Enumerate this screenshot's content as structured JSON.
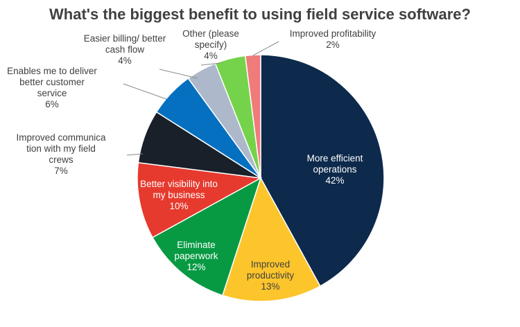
{
  "chart_data": {
    "type": "pie",
    "title": "What's the biggest benefit to using field service software?",
    "slices": [
      {
        "label": "More efficient operations",
        "value": 42,
        "value_label": "42%",
        "color": "#0d2a4c",
        "label_inside": true,
        "label_color": "#ffffff",
        "label_lines": [
          "More efficient",
          "operations"
        ]
      },
      {
        "label": "Improved productivity",
        "value": 13,
        "value_label": "13%",
        "color": "#fcc52c",
        "label_inside": true,
        "label_color": "#404040",
        "label_lines": [
          "Improved",
          "productivity"
        ]
      },
      {
        "label": "Eliminate paperwork",
        "value": 12,
        "value_label": "12%",
        "color": "#079a43",
        "label_inside": true,
        "label_color": "#ffffff",
        "label_lines": [
          "Eliminate",
          "paperwork"
        ]
      },
      {
        "label": "Better visibility into my business",
        "value": 10,
        "value_label": "10%",
        "color": "#e63a2e",
        "label_inside": true,
        "label_color": "#ffffff",
        "label_lines": [
          "Better visibility into",
          "my business"
        ]
      },
      {
        "label": "Improved communication with my field crews",
        "value": 7,
        "value_label": "7%",
        "color": "#19202a",
        "label_inside": false,
        "label_color": "#404040",
        "label_lines": [
          "Improved communica",
          "tion with my field",
          "crews"
        ]
      },
      {
        "label": "Enables me to deliver better customer service",
        "value": 6,
        "value_label": "6%",
        "color": "#0670c0",
        "label_inside": false,
        "label_color": "#404040",
        "label_lines": [
          "Enables me to deliver",
          "better customer",
          "service"
        ]
      },
      {
        "label": "Easier billing/ better cash flow",
        "value": 4,
        "value_label": "4%",
        "color": "#adb9ca",
        "label_inside": false,
        "label_color": "#404040",
        "label_lines": [
          "Easier billing/ better",
          "cash flow"
        ]
      },
      {
        "label": "Other (please specify)",
        "value": 4,
        "value_label": "4%",
        "color": "#74d34a",
        "label_inside": false,
        "label_color": "#404040",
        "label_lines": [
          "Other (please",
          "specify)"
        ]
      },
      {
        "label": "Improved profitability",
        "value": 2,
        "value_label": "2%",
        "color": "#ef7b7b",
        "label_inside": false,
        "label_color": "#404040",
        "label_lines": [
          "Improved profitability"
        ]
      }
    ],
    "legend": "none"
  }
}
